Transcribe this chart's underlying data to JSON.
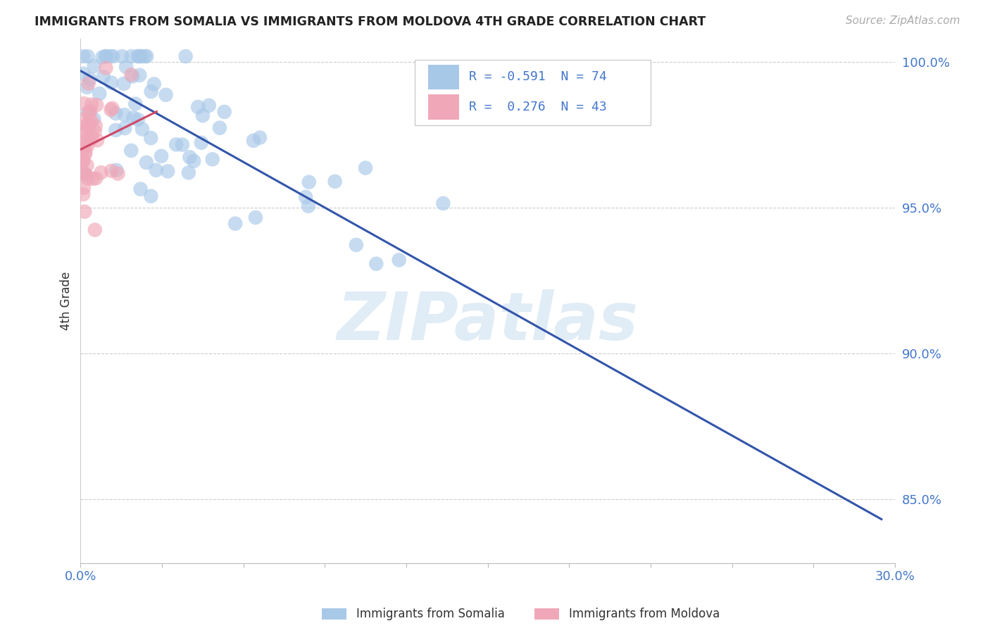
{
  "title": "IMMIGRANTS FROM SOMALIA VS IMMIGRANTS FROM MOLDOVA 4TH GRADE CORRELATION CHART",
  "source": "Source: ZipAtlas.com",
  "ylabel": "4th Grade",
  "ytick_labels": [
    "100.0%",
    "95.0%",
    "90.0%",
    "85.0%"
  ],
  "ytick_values": [
    1.0,
    0.95,
    0.9,
    0.85
  ],
  "xlim": [
    0.0,
    0.3
  ],
  "ylim": [
    0.828,
    1.008
  ],
  "somalia_color": "#a8c8e8",
  "moldova_color": "#f0a8b8",
  "somalia_line_color": "#3355aa",
  "moldova_line_color": "#d04868",
  "somalia_R": -0.591,
  "somalia_N": 74,
  "moldova_R": 0.276,
  "moldova_N": 43,
  "watermark": "ZIPatlas",
  "background_color": "#ffffff",
  "legend_somalia_label": "Immigrants from Somalia",
  "legend_moldova_label": "Immigrants from Moldova",
  "somalia_line_x0": 0.0,
  "somalia_line_y0": 0.997,
  "somalia_line_x1": 0.295,
  "somalia_line_y1": 0.843,
  "moldova_line_x0": 0.0,
  "moldova_line_y0": 0.97,
  "moldova_line_x1": 0.028,
  "moldova_line_y1": 0.983
}
